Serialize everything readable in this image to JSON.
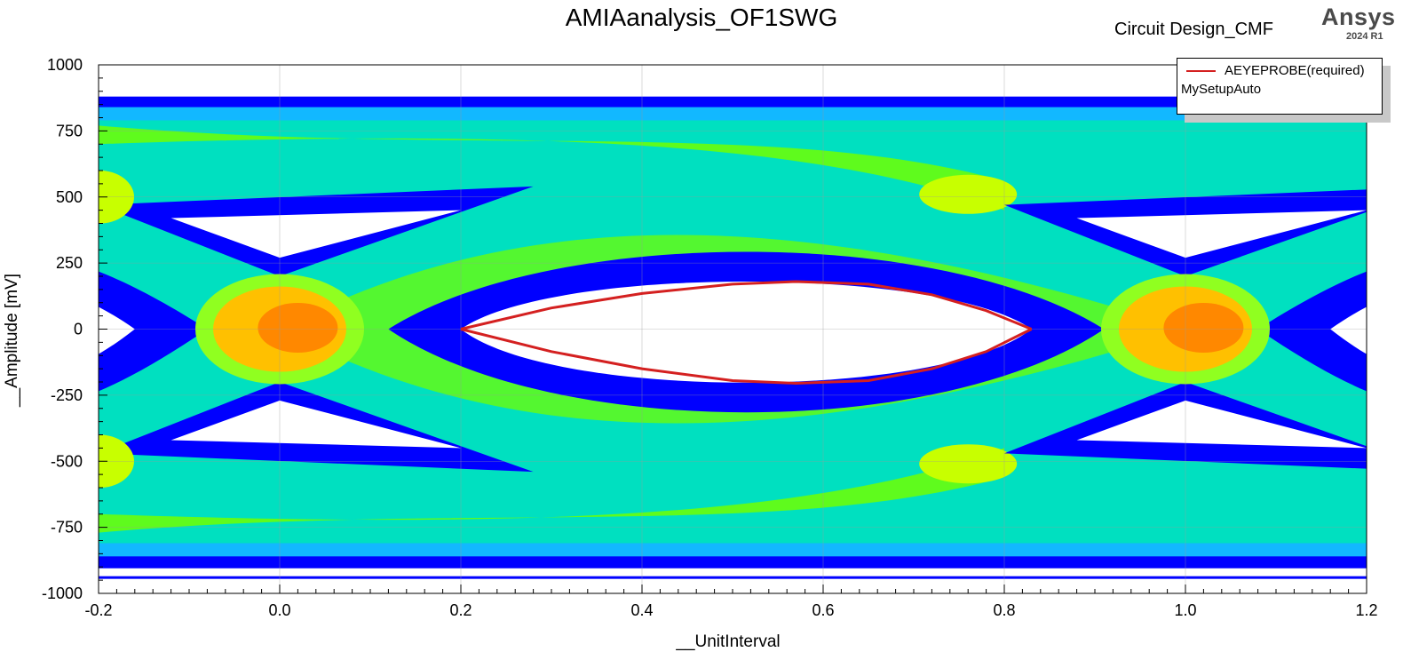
{
  "header": {
    "design_name": "Circuit Design_CMF",
    "brand": "Ansys",
    "brand_version": "2024 R1"
  },
  "legend": {
    "series_label": "AEYEPROBE(required)",
    "setup_label": "MySetupAuto"
  },
  "colors": {
    "density_low": "#00e0c0",
    "density_mid": "#70ff00",
    "density_high": "#ffc000",
    "density_peak": "#ff5a00",
    "boundary": "#0000ff",
    "contour": "#d42020"
  },
  "chart_data": {
    "type": "heatmap",
    "title": "AMIAanalysis_OF1SWG",
    "xlabel": "__UnitInterval",
    "ylabel": "__Amplitude [mV]",
    "xlim": [
      -0.2,
      1.2
    ],
    "ylim": [
      -1000,
      1000
    ],
    "x_ticks": [
      -0.2,
      0.0,
      0.2,
      0.4,
      0.6,
      0.8,
      1.0,
      1.2
    ],
    "y_ticks": [
      -1000,
      -750,
      -500,
      -250,
      0,
      250,
      500,
      750,
      1000
    ],
    "x_tick_labels": [
      "-0.2",
      "0.0",
      "0.2",
      "0.4",
      "0.6",
      "0.8",
      "1.0",
      "1.2"
    ],
    "y_tick_labels": [
      "-1000",
      "-750",
      "-500",
      "-250",
      "0",
      "250",
      "500",
      "750",
      "1000"
    ],
    "grid": true,
    "legend_position": "top-right",
    "series": [
      {
        "name": "AEYEPROBE(required)",
        "type": "eye-contour",
        "upper": [
          [
            0.2,
            0
          ],
          [
            0.3,
            80
          ],
          [
            0.4,
            135
          ],
          [
            0.5,
            170
          ],
          [
            0.57,
            180
          ],
          [
            0.65,
            170
          ],
          [
            0.72,
            130
          ],
          [
            0.78,
            70
          ],
          [
            0.83,
            0
          ]
        ],
        "lower": [
          [
            0.2,
            0
          ],
          [
            0.3,
            -85
          ],
          [
            0.4,
            -150
          ],
          [
            0.5,
            -195
          ],
          [
            0.57,
            -205
          ],
          [
            0.65,
            -195
          ],
          [
            0.72,
            -150
          ],
          [
            0.78,
            -85
          ],
          [
            0.83,
            0
          ]
        ]
      }
    ]
  }
}
